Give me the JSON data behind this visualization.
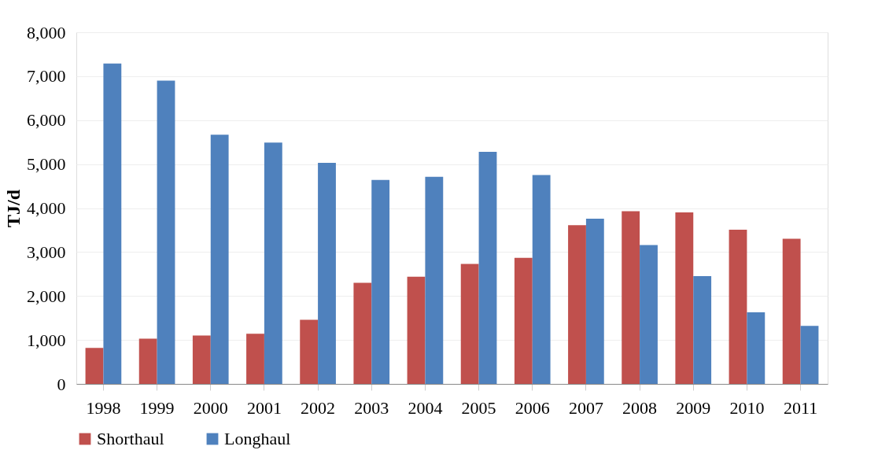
{
  "chart_data": {
    "type": "bar",
    "ylabel": "TJ/d",
    "categories": [
      "1998",
      "1999",
      "2000",
      "2001",
      "2002",
      "2003",
      "2004",
      "2005",
      "2006",
      "2007",
      "2008",
      "2009",
      "2010",
      "2011"
    ],
    "series": [
      {
        "name": "Shorthaul",
        "color": "#c0504d",
        "values": [
          820,
          1030,
          1100,
          1140,
          1460,
          2300,
          2440,
          2730,
          2870,
          3610,
          3930,
          3900,
          3510,
          3300
        ]
      },
      {
        "name": "Longhaul",
        "color": "#4f81bd",
        "values": [
          7290,
          6900,
          5670,
          5490,
          5030,
          4640,
          4710,
          5280,
          4750,
          3760,
          3160,
          2450,
          1630,
          1320
        ]
      }
    ],
    "ylim": [
      0,
      8000
    ],
    "yticks": [
      0,
      {
        "value": 1000,
        "label": "1,000"
      },
      {
        "value": 2000,
        "label": "2,000"
      },
      {
        "value": 3000,
        "label": "3,000"
      },
      {
        "value": 4000,
        "label": "4,000"
      },
      {
        "value": 5000,
        "label": "5,000"
      },
      {
        "value": 6000,
        "label": "6,000"
      },
      {
        "value": 7000,
        "label": "7,000"
      },
      {
        "value": 8000,
        "label": "8,000"
      }
    ],
    "grid": "y",
    "legend": "bottom"
  }
}
